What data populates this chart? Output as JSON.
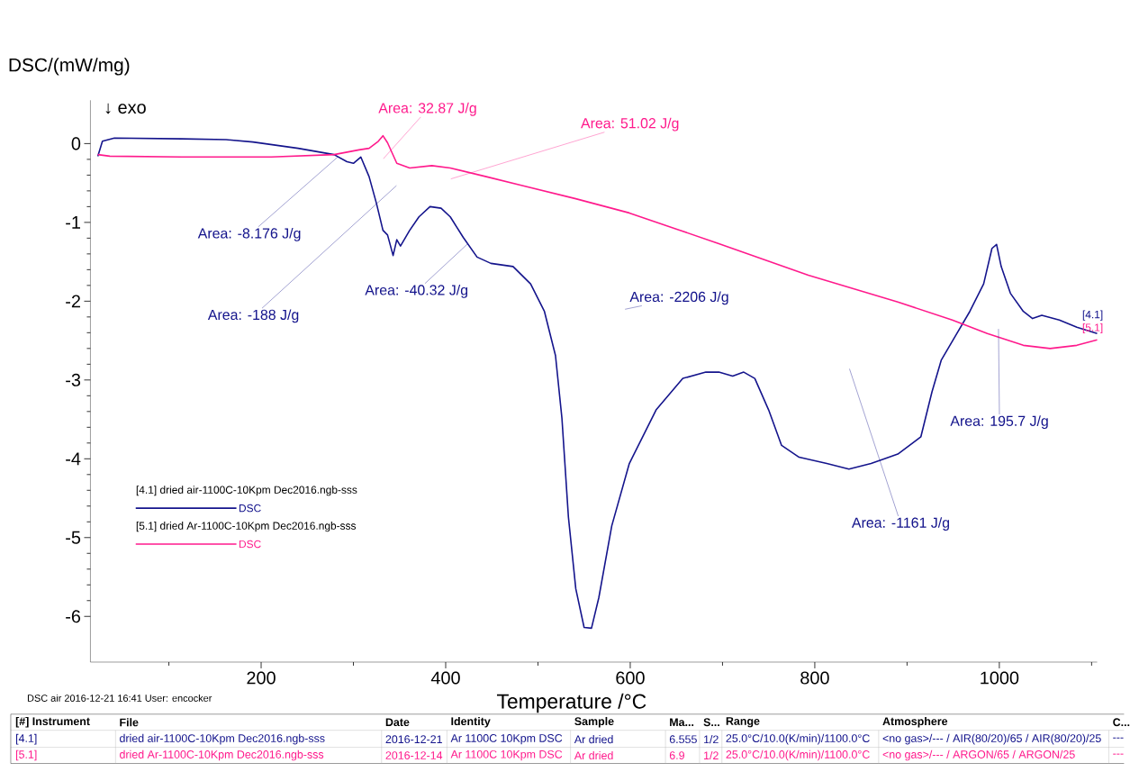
{
  "chart_data": {
    "type": "line",
    "xlabel": "Temperature /°C",
    "ylabel": "DSC/(mW/mg)",
    "xlim": [
      15,
      1106
    ],
    "ylim": [
      -6.58,
      0.55
    ],
    "xticks": [
      {
        "value": 100,
        "label": null
      },
      200,
      {
        "value": 300,
        "label": null
      },
      400,
      {
        "value": 500,
        "label": null
      },
      600,
      {
        "value": 700,
        "label": null
      },
      800,
      {
        "value": 900,
        "label": null
      },
      1000,
      {
        "value": 1100,
        "label": null
      }
    ],
    "yticks": [
      -6,
      -5,
      -4,
      -3,
      -2,
      -1,
      0
    ],
    "legend": "left",
    "marker": "none",
    "line_style": "solid",
    "series": [
      {
        "name": "DSC",
        "color": "#14148c",
        "x": [
          23,
          28,
          41,
          114,
          162,
          191,
          240,
          279,
          293,
          300,
          308,
          317,
          325,
          332,
          337,
          343,
          347,
          351,
          361,
          371,
          383,
          395,
          405,
          419,
          434,
          449,
          473,
          492,
          507,
          519,
          526,
          533,
          541,
          550,
          558,
          566,
          580,
          599,
          628,
          657,
          682,
          696,
          711,
          723,
          735,
          750,
          764,
          783,
          813,
          837,
          861,
          890,
          915,
          927,
          937,
          953,
          968,
          983,
          992,
          997,
          1002,
          1012,
          1026,
          1036,
          1046,
          1065,
          1084,
          1106
        ],
        "values": [
          -0.16,
          0.03,
          0.07,
          0.06,
          0.05,
          0.02,
          -0.06,
          -0.14,
          -0.23,
          -0.25,
          -0.17,
          -0.42,
          -0.76,
          -1.1,
          -1.16,
          -1.42,
          -1.22,
          -1.3,
          -1.1,
          -0.93,
          -0.8,
          -0.82,
          -0.93,
          -1.19,
          -1.44,
          -1.52,
          -1.56,
          -1.78,
          -2.13,
          -2.69,
          -3.49,
          -4.74,
          -5.65,
          -6.14,
          -6.15,
          -5.76,
          -4.85,
          -4.06,
          -3.38,
          -2.98,
          -2.9,
          -2.9,
          -2.95,
          -2.9,
          -2.98,
          -3.38,
          -3.83,
          -3.98,
          -4.06,
          -4.13,
          -4.06,
          -3.94,
          -3.72,
          -3.15,
          -2.75,
          -2.43,
          -2.13,
          -1.78,
          -1.33,
          -1.28,
          -1.56,
          -1.9,
          -2.13,
          -2.22,
          -2.18,
          -2.24,
          -2.33,
          -2.41
        ]
      },
      {
        "name": "DSC",
        "color": "#ff1a8c",
        "x": [
          23,
          36,
          114,
          211,
          279,
          306,
          317,
          327,
          332,
          337,
          347,
          361,
          385,
          405,
          444,
          482,
          541,
          599,
          696,
          793,
          890,
          949,
          987,
          1026,
          1055,
          1084,
          1106
        ],
        "values": [
          -0.14,
          -0.16,
          -0.17,
          -0.17,
          -0.14,
          -0.08,
          -0.06,
          0.03,
          0.1,
          0.01,
          -0.25,
          -0.31,
          -0.28,
          -0.31,
          -0.42,
          -0.53,
          -0.7,
          -0.88,
          -1.27,
          -1.67,
          -2.01,
          -2.24,
          -2.41,
          -2.56,
          -2.6,
          -2.56,
          -2.49
        ]
      }
    ],
    "annotations": [
      {
        "text": "Area: -8.176 J/g",
        "x": 283,
        "y": -0.17
      },
      "Area: 32.87 J/g",
      "Area: 51.02 J/g",
      "Area: -188 J/g",
      {
        "text": "Area: -40.32 J/g",
        "x": 424,
        "y": -1.27
      },
      "Area: -2206 J/g",
      "Area: -1161 J/g",
      "Area: 195.7 J/g",
      "↓ exo",
      "[4.1]",
      "[5.1]",
      "[4.1] dried air-1100C-10Kpm Dec2016.ngb-sss",
      "[5.1] dried Ar-1100C-10Kpm Dec2016.ngb-sss",
      "DSC air   2016-12-21 16:41   User: encocker",
      "[#] Instrument",
      "File",
      "Date",
      "Identity",
      "Sample",
      "Ma...",
      "S...",
      "Range",
      "Atmosphere",
      "C...",
      "[4.1]",
      "dried air-1100C-10Kpm Dec2016.ngb-sss",
      "2016-12-21",
      "Ar 1100C 10Kpm DSC",
      "Ar dried",
      "6.555",
      "1/2",
      "25.0°C/10.0(K/min)/1100.0°C",
      "<no gas>/--- / AIR(80/20)/65 / AIR(80/20)/25",
      "---",
      "[5.1]",
      "dried Ar-1100C-10Kpm Dec2016.ngb-sss",
      "2016-12-14",
      "Ar 1100C 10Kpm DSC",
      "Ar dried",
      "6.9",
      "1/2",
      "25.0°C/10.0(K/min)/1100.0°C",
      "<no gas>/--- / ARGON/65 / ARGON/25",
      "---"
    ]
  }
}
